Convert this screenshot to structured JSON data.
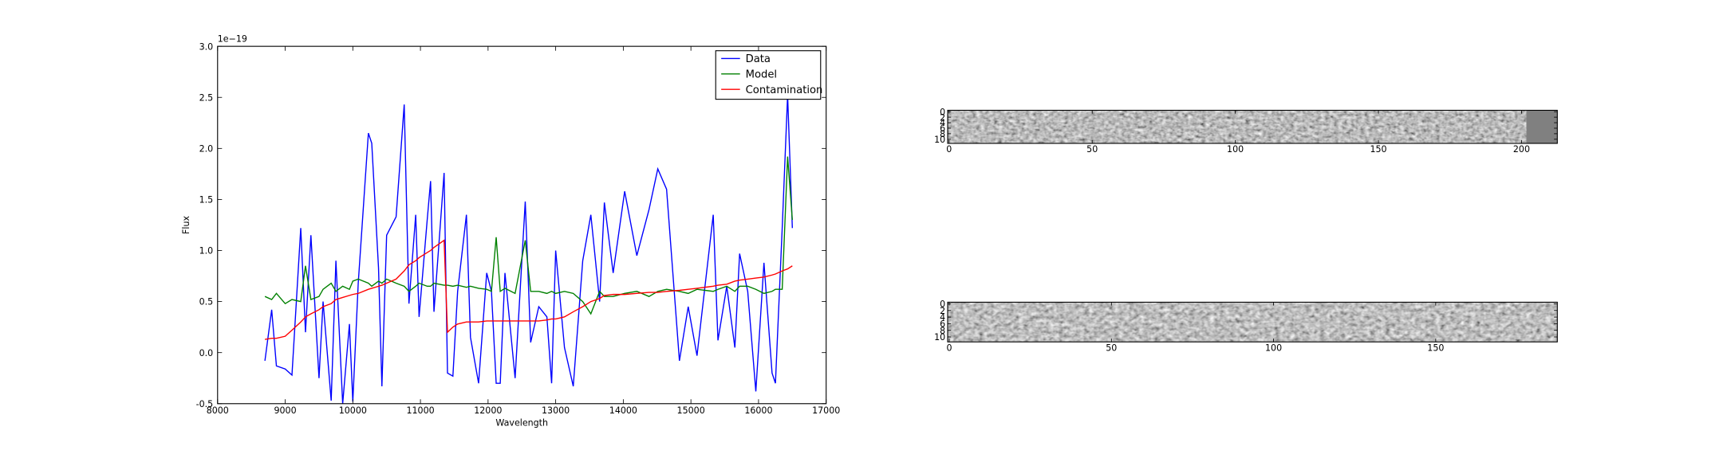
{
  "chart_data": [
    {
      "type": "line",
      "x_label": "Wavelength",
      "y_label": "Flux",
      "y_offset_label": "1e−19",
      "x": [
        8700,
        8800,
        8870,
        9000,
        9100,
        9230,
        9300,
        9380,
        9500,
        9560,
        9680,
        9750,
        9850,
        9950,
        10000,
        10080,
        10230,
        10280,
        10380,
        10430,
        10500,
        10640,
        10760,
        10830,
        10930,
        10980,
        11100,
        11150,
        11200,
        11350,
        11400,
        11480,
        11550,
        11680,
        11740,
        11860,
        11980,
        12050,
        12120,
        12180,
        12250,
        12400,
        12550,
        12630,
        12750,
        12870,
        12940,
        13000,
        13130,
        13260,
        13400,
        13520,
        13650,
        13720,
        13850,
        14020,
        14200,
        14380,
        14510,
        14640,
        14830,
        14960,
        15090,
        15330,
        15400,
        15530,
        15650,
        15720,
        15840,
        15960,
        16080,
        16200,
        16250,
        16350,
        16430,
        16500
      ],
      "series": [
        {
          "name": "Data",
          "color": "#0000ff",
          "values": [
            -0.08,
            0.42,
            -0.13,
            -0.16,
            -0.22,
            1.22,
            0.2,
            1.15,
            -0.25,
            0.5,
            -0.47,
            0.9,
            -0.5,
            0.28,
            -0.48,
            0.68,
            2.15,
            2.05,
            0.83,
            -0.33,
            1.15,
            1.33,
            2.43,
            0.48,
            1.35,
            0.35,
            1.3,
            1.68,
            0.4,
            1.76,
            -0.2,
            -0.23,
            0.6,
            1.35,
            0.15,
            -0.3,
            0.78,
            0.6,
            -0.3,
            -0.3,
            0.78,
            -0.25,
            1.48,
            0.1,
            0.45,
            0.35,
            -0.3,
            1.0,
            0.05,
            -0.33,
            0.9,
            1.35,
            0.5,
            1.47,
            0.78,
            1.58,
            0.95,
            1.4,
            1.8,
            1.6,
            -0.08,
            0.45,
            -0.03,
            1.35,
            0.12,
            0.65,
            0.05,
            0.97,
            0.6,
            -0.38,
            0.88,
            -0.2,
            -0.3,
            1.22,
            2.52,
            1.22
          ]
        },
        {
          "name": "Model",
          "color": "#008000",
          "values": [
            0.55,
            0.52,
            0.58,
            0.48,
            0.52,
            0.5,
            0.85,
            0.52,
            0.55,
            0.62,
            0.68,
            0.6,
            0.65,
            0.62,
            0.7,
            0.72,
            0.68,
            0.65,
            0.7,
            0.68,
            0.72,
            0.68,
            0.65,
            0.6,
            0.65,
            0.68,
            0.65,
            0.65,
            0.68,
            0.66,
            0.66,
            0.65,
            0.66,
            0.64,
            0.65,
            0.63,
            0.62,
            0.6,
            1.13,
            0.6,
            0.63,
            0.58,
            1.1,
            0.6,
            0.6,
            0.58,
            0.6,
            0.58,
            0.6,
            0.58,
            0.5,
            0.38,
            0.6,
            0.55,
            0.55,
            0.58,
            0.6,
            0.55,
            0.6,
            0.62,
            0.6,
            0.58,
            0.62,
            0.6,
            0.62,
            0.65,
            0.6,
            0.65,
            0.65,
            0.62,
            0.58,
            0.6,
            0.62,
            0.62,
            1.92,
            1.3
          ]
        },
        {
          "name": "Contamination",
          "color": "#ff0000",
          "values": [
            0.13,
            0.14,
            0.14,
            0.16,
            0.22,
            0.3,
            0.35,
            0.38,
            0.42,
            0.45,
            0.48,
            0.52,
            0.54,
            0.56,
            0.57,
            0.58,
            0.62,
            0.63,
            0.65,
            0.66,
            0.68,
            0.72,
            0.8,
            0.86,
            0.9,
            0.93,
            0.98,
            1.0,
            1.03,
            1.1,
            0.2,
            0.25,
            0.28,
            0.3,
            0.3,
            0.3,
            0.31,
            0.31,
            0.31,
            0.31,
            0.31,
            0.31,
            0.31,
            0.31,
            0.31,
            0.32,
            0.33,
            0.33,
            0.35,
            0.4,
            0.45,
            0.5,
            0.53,
            0.56,
            0.57,
            0.57,
            0.58,
            0.59,
            0.59,
            0.6,
            0.61,
            0.62,
            0.63,
            0.65,
            0.66,
            0.67,
            0.7,
            0.71,
            0.72,
            0.73,
            0.74,
            0.76,
            0.77,
            0.8,
            0.82,
            0.85
          ]
        }
      ],
      "xlim": [
        8000,
        17000
      ],
      "xticks": [
        8000,
        9000,
        10000,
        11000,
        12000,
        13000,
        14000,
        15000,
        16000,
        17000
      ],
      "ylim": [
        -0.5,
        3.0
      ],
      "yticks": [
        -0.5,
        {
          "value": 0,
          "label": "0.0"
        },
        0.5,
        {
          "value": 1,
          "label": "1.0"
        },
        1.5,
        {
          "value": 2,
          "label": "2.0"
        },
        2.5,
        {
          "value": 3,
          "label": "3.0"
        }
      ],
      "legend": "upper right",
      "grid": false
    },
    {
      "type": "image",
      "xlim": [
        -0.5,
        212.5
      ],
      "xticks": [
        0,
        50,
        100,
        150,
        200
      ],
      "ylim": [
        11.5,
        -0.5
      ],
      "yticks": [
        0,
        2,
        4,
        6,
        8,
        10
      ]
    },
    {
      "type": "image",
      "xlim": [
        -0.5,
        187.5
      ],
      "xticks": [
        0,
        50,
        100,
        150
      ],
      "ylim": [
        11.5,
        -0.5
      ],
      "yticks": [
        0,
        2,
        4,
        6,
        8,
        10
      ]
    }
  ]
}
